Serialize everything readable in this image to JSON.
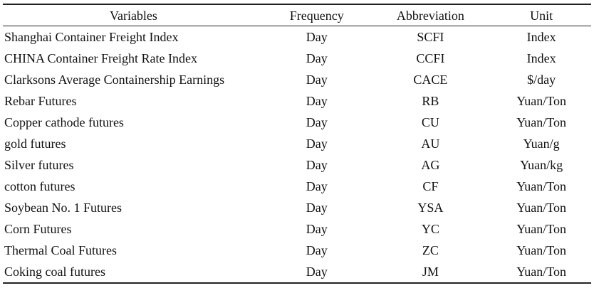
{
  "table": {
    "headers": [
      "Variables",
      "Frequency",
      "Abbreviation",
      "Unit"
    ],
    "rows": [
      [
        "Shanghai Container Freight Index",
        "Day",
        "SCFI",
        "Index"
      ],
      [
        "CHINA Container Freight Rate Index",
        "Day",
        "CCFI",
        "Index"
      ],
      [
        "Clarksons Average Containership Earnings",
        "Day",
        "CACE",
        "$/day"
      ],
      [
        "Rebar Futures",
        "Day",
        "RB",
        "Yuan/Ton"
      ],
      [
        "Copper cathode futures",
        "Day",
        "CU",
        "Yuan/Ton"
      ],
      [
        "gold futures",
        "Day",
        "AU",
        "Yuan/g"
      ],
      [
        "Silver futures",
        "Day",
        "AG",
        "Yuan/kg"
      ],
      [
        "cotton futures",
        "Day",
        "CF",
        "Yuan/Ton"
      ],
      [
        "Soybean No. 1 Futures",
        "Day",
        "YSA",
        "Yuan/Ton"
      ],
      [
        "Corn Futures",
        "Day",
        "YC",
        "Yuan/Ton"
      ],
      [
        "Thermal Coal Futures",
        "Day",
        "ZC",
        "Yuan/Ton"
      ],
      [
        "Coking coal futures",
        "Day",
        "JM",
        "Yuan/Ton"
      ]
    ]
  }
}
